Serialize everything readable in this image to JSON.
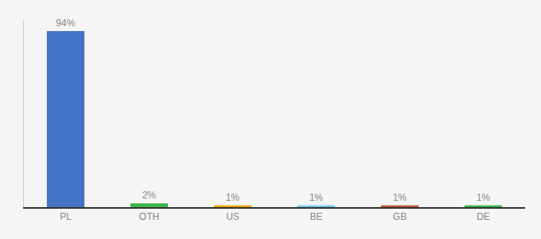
{
  "chart_data": {
    "type": "bar",
    "categories": [
      "PL",
      "OTH",
      "US",
      "BE",
      "GB",
      "DE"
    ],
    "values": [
      94,
      2,
      1,
      1,
      1,
      1
    ],
    "value_labels": [
      "94%",
      "2%",
      "1%",
      "1%",
      "1%",
      "1%"
    ],
    "colors": [
      "#4472c4",
      "#3cb54a",
      "#f0a500",
      "#74c6e8",
      "#c0533a",
      "#3cb54a"
    ],
    "ylim": [
      0,
      100
    ],
    "grid": false,
    "data_labels": true,
    "tick_labels": "x"
  }
}
